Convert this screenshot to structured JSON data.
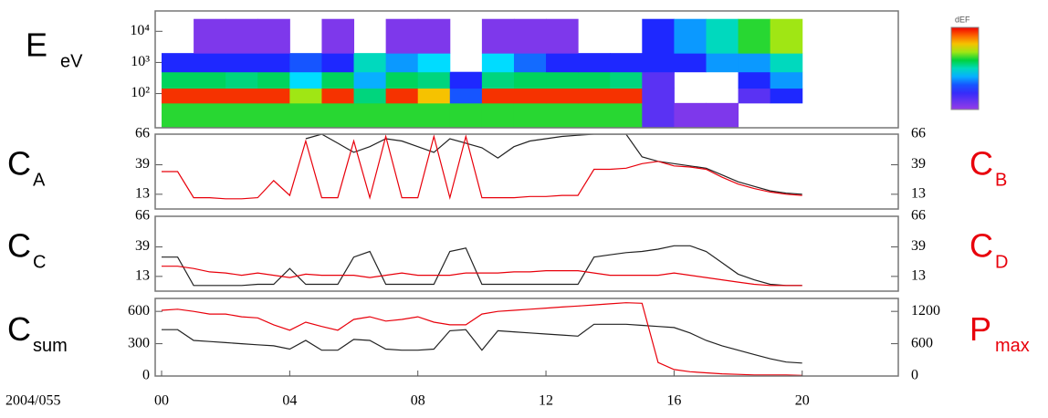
{
  "chart_data": [
    {
      "type": "heatmap",
      "ylabel": "E",
      "ylabel_sub": "eV",
      "yscale": "log",
      "xlim": [
        -0.2,
        23
      ],
      "ylim": [
        8,
        45000
      ],
      "yticks": [
        {
          "value": 100,
          "label": "10²"
        },
        {
          "value": 1000,
          "label": "10³"
        },
        {
          "value": 10000,
          "label": "10⁴"
        }
      ],
      "xbins": [
        0,
        1,
        2,
        3,
        4,
        5,
        6,
        7,
        8,
        9,
        10,
        11,
        12,
        13,
        14,
        15,
        16,
        17,
        18,
        19,
        20
      ],
      "ybins": [
        8,
        50,
        150,
        500,
        2000,
        25000
      ],
      "z": [
        [
          6.5,
          6.5,
          6.5,
          6.5,
          6.5,
          6.5,
          6.5,
          6.5,
          6.5,
          6.5,
          6.5,
          6.5,
          6.5,
          6.5,
          6.5,
          4.5,
          4.2,
          4.2,
          null,
          null
        ],
        [
          7.8,
          7.8,
          7.8,
          7.8,
          6.8,
          7.8,
          6.2,
          7.8,
          7.2,
          5.2,
          7.8,
          7.8,
          7.8,
          7.8,
          7.8,
          4.5,
          null,
          null,
          4.5,
          5
        ],
        [
          6.3,
          6.3,
          6.2,
          6.3,
          5.8,
          6.3,
          5.6,
          6.3,
          6.2,
          5.0,
          6.2,
          6.3,
          6.3,
          6.3,
          6.2,
          4.5,
          null,
          null,
          5,
          5.5
        ],
        [
          5.0,
          5.0,
          5.0,
          5.0,
          5.2,
          5.0,
          6.0,
          5.5,
          5.8,
          null,
          5.8,
          5.3,
          5.0,
          5.0,
          5.0,
          5,
          5,
          5.5,
          5.5,
          6
        ],
        [
          null,
          4.2,
          4.2,
          4.2,
          null,
          4.2,
          null,
          4.2,
          4.2,
          null,
          4.2,
          4.2,
          4.2,
          null,
          null,
          5,
          5.5,
          6,
          6.5,
          6.8
        ]
      ],
      "zlim": [
        4,
        8
      ],
      "colorbar_title": "dEF"
    },
    {
      "type": "line",
      "ylabel": "C",
      "ylabel_sub": "A",
      "y2label": "C",
      "y2label_sub": "B",
      "y2label_color": "#e8000b",
      "xlim": [
        -0.2,
        23
      ],
      "ylim": [
        0,
        66
      ],
      "yticks": [
        13,
        39,
        66
      ],
      "y2lim": [
        0,
        66
      ],
      "y2ticks": [
        13,
        39,
        66
      ],
      "x": [
        0,
        0.5,
        1,
        1.5,
        2,
        2.5,
        3,
        3.5,
        4,
        4.5,
        5,
        5.5,
        6,
        6.5,
        7,
        7.5,
        8,
        8.5,
        9,
        9.5,
        10,
        10.5,
        11,
        11.5,
        12,
        12.5,
        13,
        13.5,
        14,
        14.5,
        15,
        15.5,
        16,
        16.5,
        17,
        17.5,
        18,
        18.5,
        19,
        19.5,
        20
      ],
      "series": [
        {
          "color": "#222222",
          "values": [
            null,
            null,
            null,
            null,
            null,
            null,
            null,
            null,
            null,
            62,
            66,
            58,
            50,
            55,
            62,
            60,
            55,
            50,
            62,
            58,
            54,
            45,
            55,
            60,
            62,
            64,
            65,
            66,
            66,
            66,
            46,
            42,
            40,
            38,
            36,
            30,
            24,
            20,
            16,
            14,
            13
          ]
        },
        {
          "color": "#e8000b",
          "axis": "y2",
          "values": [
            33,
            33,
            10,
            10,
            9,
            9,
            10,
            25,
            12,
            60,
            10,
            10,
            60,
            10,
            64,
            10,
            10,
            64,
            10,
            64,
            10,
            10,
            10,
            11,
            11,
            12,
            12,
            35,
            35,
            36,
            40,
            42,
            38,
            37,
            35,
            28,
            22,
            18,
            15,
            13,
            12
          ]
        }
      ]
    },
    {
      "type": "line",
      "ylabel": "C",
      "ylabel_sub": "C",
      "y2label": "C",
      "y2label_sub": "D",
      "y2label_color": "#e8000b",
      "xlim": [
        -0.2,
        23
      ],
      "ylim": [
        0,
        66
      ],
      "yticks": [
        13,
        39,
        66
      ],
      "y2lim": [
        0,
        66
      ],
      "y2ticks": [
        13,
        39,
        66
      ],
      "x": [
        0,
        0.5,
        1,
        1.5,
        2,
        2.5,
        3,
        3.5,
        4,
        4.5,
        5,
        5.5,
        6,
        6.5,
        7,
        7.5,
        8,
        8.5,
        9,
        9.5,
        10,
        10.5,
        11,
        11.5,
        12,
        12.5,
        13,
        13.5,
        14,
        14.5,
        15,
        15.5,
        16,
        16.5,
        17,
        17.5,
        18,
        18.5,
        19,
        19.5,
        20
      ],
      "series": [
        {
          "color": "#222222",
          "values": [
            30,
            30,
            5,
            5,
            5,
            5,
            6,
            6,
            20,
            6,
            6,
            6,
            30,
            35,
            6,
            6,
            6,
            6,
            35,
            38,
            6,
            6,
            6,
            6,
            6,
            6,
            6,
            30,
            32,
            34,
            35,
            37,
            40,
            40,
            35,
            25,
            15,
            10,
            6,
            5,
            5
          ]
        },
        {
          "color": "#e8000b",
          "axis": "y2",
          "values": [
            22,
            22,
            20,
            17,
            16,
            14,
            16,
            14,
            12,
            15,
            14,
            14,
            14,
            12,
            14,
            16,
            14,
            14,
            14,
            16,
            16,
            16,
            17,
            17,
            18,
            18,
            18,
            16,
            14,
            14,
            14,
            14,
            16,
            14,
            12,
            10,
            8,
            6,
            5,
            5,
            5
          ]
        }
      ]
    },
    {
      "type": "line",
      "ylabel": "C",
      "ylabel_sub": "sum",
      "y2label": "P",
      "y2label_sub": "max",
      "y2label_color": "#e8000b",
      "xlim": [
        -0.2,
        23
      ],
      "ylim": [
        0,
        720
      ],
      "yticks": [
        0,
        300,
        600
      ],
      "y2lim": [
        0,
        1440
      ],
      "y2ticks": [
        0,
        600,
        1200
      ],
      "xlabel": "2004/055",
      "xticks": [
        {
          "value": 0,
          "label": "00"
        },
        {
          "value": 4,
          "label": "04"
        },
        {
          "value": 8,
          "label": "08"
        },
        {
          "value": 12,
          "label": "12"
        },
        {
          "value": 16,
          "label": "16"
        },
        {
          "value": 20,
          "label": "20"
        }
      ],
      "x": [
        0,
        0.5,
        1,
        1.5,
        2,
        2.5,
        3,
        3.5,
        4,
        4.5,
        5,
        5.5,
        6,
        6.5,
        7,
        7.5,
        8,
        8.5,
        9,
        9.5,
        10,
        10.5,
        11,
        11.5,
        12,
        12.5,
        13,
        13.5,
        14,
        14.5,
        15,
        15.5,
        16,
        16.5,
        17,
        17.5,
        18,
        18.5,
        19,
        19.5,
        20
      ],
      "series": [
        {
          "color": "#222222",
          "values": [
            430,
            430,
            330,
            320,
            310,
            300,
            290,
            280,
            250,
            330,
            240,
            240,
            340,
            330,
            250,
            240,
            240,
            250,
            420,
            430,
            240,
            420,
            410,
            400,
            390,
            380,
            370,
            480,
            480,
            480,
            470,
            460,
            450,
            400,
            330,
            280,
            240,
            200,
            160,
            130,
            120
          ]
        },
        {
          "color": "#e8000b",
          "axis": "y2",
          "values": [
            1220,
            1240,
            1200,
            1150,
            1150,
            1100,
            1080,
            950,
            850,
            1000,
            920,
            850,
            1050,
            1100,
            1020,
            1050,
            1100,
            1000,
            950,
            950,
            1150,
            1200,
            1220,
            1240,
            1260,
            1280,
            1300,
            1320,
            1340,
            1360,
            1350,
            250,
            120,
            80,
            60,
            40,
            30,
            20,
            20,
            20,
            10
          ]
        }
      ]
    }
  ]
}
